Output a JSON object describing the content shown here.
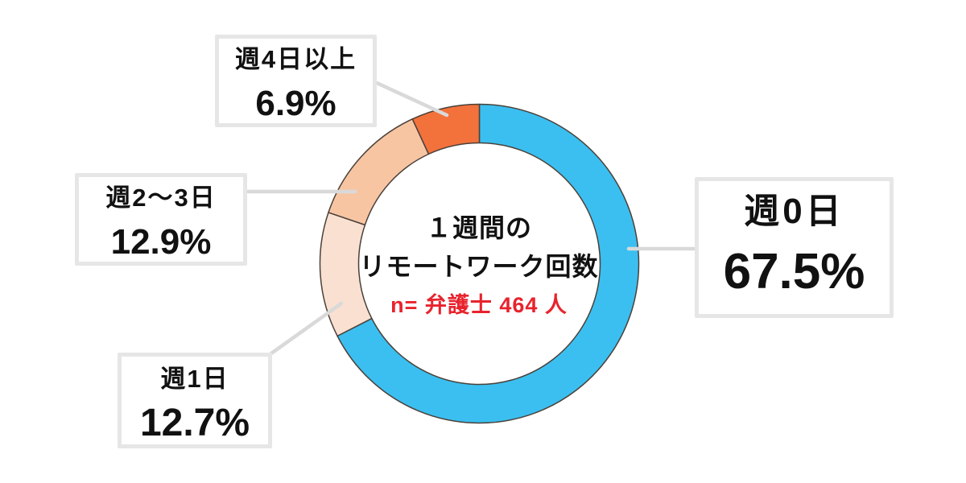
{
  "page": {
    "background_color": "#ffffff"
  },
  "chart_data": {
    "type": "pie",
    "subtype": "donut",
    "title": "１週間のリモートワーク回数",
    "title_lines": [
      "１週間の",
      "リモートワーク回数"
    ],
    "annotation": "n= 弁護士 464 人",
    "annotation_color": "#e8232d",
    "unit": "%",
    "start_angle": "top",
    "direction": "clockwise",
    "legend_position": "callout-boxes",
    "categories": [
      "週0日",
      "週1日",
      "週2〜3日",
      "週4日以上"
    ],
    "values": [
      67.5,
      12.7,
      12.9,
      6.9
    ],
    "segments": [
      {
        "label": "週0日",
        "value": 67.5,
        "value_label": "67.5%",
        "color": "#3bbff0"
      },
      {
        "label": "週1日",
        "value": 12.7,
        "value_label": "12.7%",
        "color": "#fae0d1"
      },
      {
        "label": "週2〜3日",
        "value": 12.9,
        "value_label": "12.9%",
        "color": "#f8c5a3"
      },
      {
        "label": "週4日以上",
        "value": 6.9,
        "value_label": "6.9%",
        "color": "#f3713b"
      }
    ],
    "segment_outline_color": "#4a413a",
    "leader_line_color": "#d9d9d9",
    "callout_border_color": "#e6e6e6",
    "text_color": "#111111"
  }
}
